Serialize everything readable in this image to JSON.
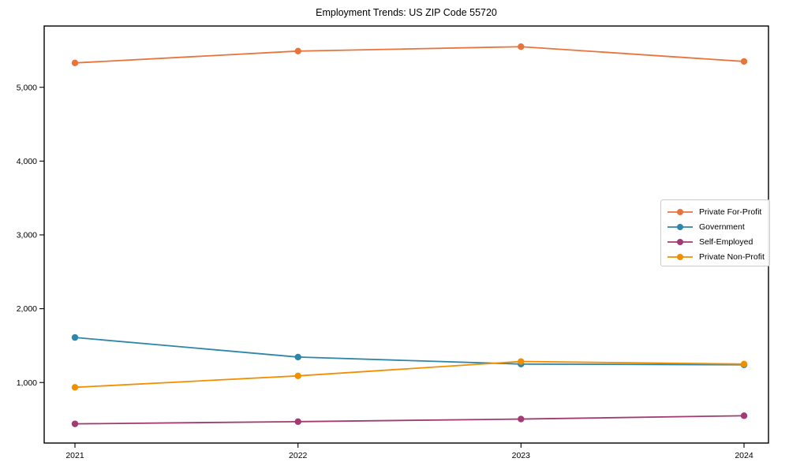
{
  "chart_data": {
    "type": "line",
    "title": "Employment Trends: US ZIP Code 55720",
    "xlabel": "",
    "ylabel": "",
    "x": [
      "2021",
      "2022",
      "2023",
      "2024"
    ],
    "series": [
      {
        "name": "Private For-Profit",
        "color": "#E8743B",
        "values": [
          5330,
          5490,
          5550,
          5350
        ]
      },
      {
        "name": "Government",
        "color": "#2E86AB",
        "values": [
          1610,
          1345,
          1250,
          1240
        ]
      },
      {
        "name": "Self-Employed",
        "color": "#A23B72",
        "values": [
          440,
          470,
          505,
          550
        ]
      },
      {
        "name": "Private Non-Profit",
        "color": "#F18F01",
        "values": [
          935,
          1090,
          1285,
          1250
        ]
      }
    ],
    "yticks": {
      "values": [
        1000,
        2000,
        3000,
        4000,
        5000
      ],
      "labels": [
        "1,000",
        "2,000",
        "3,000",
        "4,000",
        "5,000"
      ]
    },
    "ylim": [
      180,
      5830
    ],
    "grid": false,
    "legend_position": "center right",
    "marker": "circle"
  }
}
